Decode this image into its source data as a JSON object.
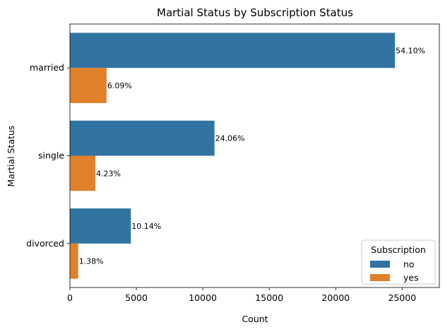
{
  "chart_data": {
    "type": "bar",
    "orientation": "horizontal",
    "title": "Martial Status by Subscription Status",
    "xlabel": "Count",
    "ylabel": "Martial Status",
    "categories": [
      "married",
      "single",
      "divorced"
    ],
    "series": [
      {
        "name": "no",
        "color": "#3274a1",
        "values": [
          24459,
          10878,
          4585
        ],
        "labels": [
          "54.10%",
          "24.06%",
          "10.14%"
        ]
      },
      {
        "name": "yes",
        "color": "#e1812c",
        "values": [
          2755,
          1912,
          622
        ],
        "labels": [
          "6.09%",
          "4.23%",
          "1.38%"
        ]
      }
    ],
    "xlim": [
      0,
      27800
    ],
    "xticks": [
      0,
      5000,
      10000,
      15000,
      20000,
      25000
    ],
    "legend": {
      "title": "Subscription",
      "position": "lower-right"
    },
    "grid": false
  }
}
